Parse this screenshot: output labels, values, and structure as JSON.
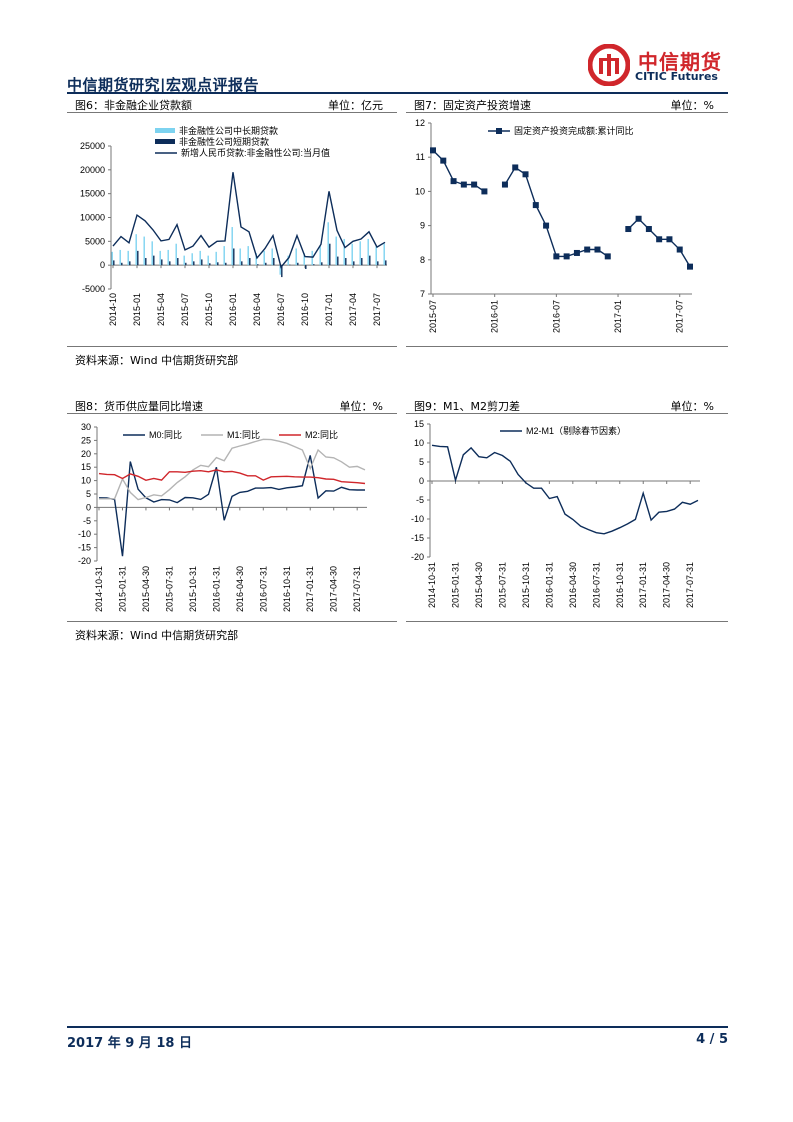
{
  "header": {
    "brand": "中信期货研究|宏观点评报告",
    "logo_cn": "中信期货",
    "logo_en": "CITIC Futures"
  },
  "fig6": {
    "title": "图6：非金融企业贷款额",
    "unit": "单位：亿元",
    "chart_data": {
      "type": "bar+line",
      "categories": [
        "2014-10",
        "2014-11",
        "2014-12",
        "2015-01",
        "2015-02",
        "2015-03",
        "2015-04",
        "2015-05",
        "2015-06",
        "2015-07",
        "2015-08",
        "2015-09",
        "2015-10",
        "2015-11",
        "2015-12",
        "2016-01",
        "2016-02",
        "2016-03",
        "2016-04",
        "2016-05",
        "2016-06",
        "2016-07",
        "2016-08",
        "2016-09",
        "2016-10",
        "2016-11",
        "2016-12",
        "2017-01",
        "2017-02",
        "2017-03",
        "2017-04",
        "2017-05",
        "2017-06",
        "2017-07",
        "2017-08"
      ],
      "tick_labels": [
        "2014-10",
        "2015-01",
        "2015-04",
        "2015-07",
        "2015-10",
        "2016-01",
        "2016-04",
        "2016-07",
        "2016-10",
        "2017-01",
        "2017-04",
        "2017-07"
      ],
      "ylim": [
        -5000,
        25000
      ],
      "yticks": [
        "25000",
        "20000",
        "15000",
        "10000",
        "5000",
        "0",
        "-5000"
      ],
      "series": [
        {
          "name": "非金融性公司中长期贷款",
          "color": "#7dd3f0",
          "values": [
            2800,
            3200,
            3000,
            6500,
            6000,
            5000,
            3000,
            3200,
            4500,
            2000,
            2500,
            3000,
            2000,
            2800,
            4000,
            8000,
            3500,
            4000,
            2500,
            3000,
            3500,
            -2000,
            2000,
            3500,
            2500,
            3000,
            4000,
            9000,
            6000,
            5500,
            4500,
            5000,
            5500,
            4000,
            4500
          ]
        },
        {
          "name": "非金融性公司短期贷款",
          "color": "#0d2d5a",
          "values": [
            1000,
            500,
            800,
            3000,
            1500,
            2000,
            1200,
            800,
            1500,
            500,
            800,
            1200,
            400,
            600,
            500,
            3500,
            800,
            1500,
            200,
            500,
            1500,
            -2500,
            100,
            500,
            -800,
            200,
            600,
            4500,
            1800,
            1500,
            800,
            1500,
            2000,
            800,
            1000
          ]
        },
        {
          "name": "新增人民币贷款:非金融性公司:当月值",
          "color": "#0d2d5a",
          "values": [
            4000,
            6000,
            4700,
            10500,
            9300,
            7400,
            5100,
            5400,
            8500,
            3200,
            4000,
            6200,
            3800,
            5000,
            5100,
            19500,
            8000,
            7000,
            1500,
            3500,
            6200,
            -400,
            1600,
            6200,
            1800,
            1700,
            4400,
            15500,
            7300,
            3700,
            5000,
            5500,
            7000,
            3800,
            4800
          ]
        }
      ]
    }
  },
  "fig7": {
    "title": "图7：固定资产投资增速",
    "unit": "单位：%",
    "chart_data": {
      "type": "line",
      "categories": [
        "2015-07",
        "2015-08",
        "2015-09",
        "2015-10",
        "2015-11",
        "2015-12",
        "2016-01",
        "2016-02",
        "2016-03",
        "2016-04",
        "2016-05",
        "2016-06",
        "2016-07",
        "2016-08",
        "2016-09",
        "2016-10",
        "2016-11",
        "2016-12",
        "2017-01",
        "2017-02",
        "2017-03",
        "2017-04",
        "2017-05",
        "2017-06",
        "2017-07",
        "2017-08"
      ],
      "tick_labels": [
        "2015-07",
        "2016-01",
        "2016-07",
        "2017-01",
        "2017-07"
      ],
      "ylim": [
        7,
        12
      ],
      "yticks": [
        "12",
        "11",
        "10",
        "9",
        "8",
        "7"
      ],
      "series": [
        {
          "name": "固定资产投资完成额:累计同比",
          "color": "#0d2d5a",
          "values": [
            11.2,
            10.9,
            10.3,
            10.2,
            10.2,
            10.0,
            null,
            10.2,
            10.7,
            10.5,
            9.6,
            9.0,
            8.1,
            8.1,
            8.2,
            8.3,
            8.3,
            8.1,
            null,
            8.9,
            9.2,
            8.9,
            8.6,
            8.6,
            8.3,
            7.8
          ]
        }
      ]
    }
  },
  "source1": "资料来源：Wind  中信期货研究部",
  "fig8": {
    "title": "图8：货币供应量同比增速",
    "unit": "单位：%",
    "chart_data": {
      "type": "line",
      "categories": [
        "2014-10",
        "2014-11",
        "2014-12",
        "2015-01",
        "2015-02",
        "2015-03",
        "2015-04",
        "2015-05",
        "2015-06",
        "2015-07",
        "2015-08",
        "2015-09",
        "2015-10",
        "2015-11",
        "2015-12",
        "2016-01",
        "2016-02",
        "2016-03",
        "2016-04",
        "2016-05",
        "2016-06",
        "2016-07",
        "2016-08",
        "2016-09",
        "2016-10",
        "2016-11",
        "2016-12",
        "2017-01",
        "2017-02",
        "2017-03",
        "2017-04",
        "2017-05",
        "2017-06",
        "2017-07",
        "2017-08"
      ],
      "tick_labels": [
        "2014-10-31",
        "2015-01-31",
        "2015-04-30",
        "2015-07-31",
        "2015-10-31",
        "2016-01-31",
        "2016-04-30",
        "2016-07-31",
        "2016-10-31",
        "2017-01-31",
        "2017-04-30",
        "2017-07-31"
      ],
      "ylim": [
        -20,
        30
      ],
      "yticks": [
        "30",
        "25",
        "20",
        "15",
        "10",
        "5",
        "0",
        "-5",
        "-10",
        "-15",
        "-20"
      ],
      "series": [
        {
          "name": "M0:同比",
          "color": "#0d2d5a",
          "values": [
            3.6,
            3.5,
            2.9,
            -18.2,
            17.1,
            6.8,
            3.6,
            2.0,
            2.9,
            2.8,
            1.8,
            3.7,
            3.6,
            3.0,
            4.9,
            15.0,
            -4.8,
            4.1,
            5.6,
            6.0,
            7.2,
            7.2,
            7.4,
            6.7,
            7.3,
            7.6,
            8.1,
            19.4,
            3.5,
            6.2,
            6.1,
            7.5,
            6.6,
            6.5,
            6.5
          ]
        },
        {
          "name": "M1:同比",
          "color": "#b4b4b4",
          "values": [
            3.2,
            3.2,
            3.2,
            10.6,
            5.6,
            2.9,
            3.7,
            4.7,
            4.3,
            6.6,
            9.3,
            11.4,
            14.0,
            15.7,
            15.2,
            18.6,
            17.4,
            22.1,
            22.9,
            23.7,
            24.6,
            25.4,
            25.3,
            24.7,
            23.9,
            22.7,
            21.4,
            14.5,
            21.4,
            18.8,
            18.5,
            17.0,
            15.0,
            15.3,
            14.0
          ]
        },
        {
          "name": "M2:同比",
          "color": "#d0262b",
          "values": [
            12.6,
            12.3,
            12.2,
            10.8,
            12.5,
            11.6,
            10.1,
            10.8,
            10.2,
            13.3,
            13.3,
            13.1,
            13.5,
            13.7,
            13.3,
            14.0,
            13.3,
            13.4,
            12.8,
            11.8,
            11.8,
            10.2,
            11.4,
            11.5,
            11.6,
            11.4,
            11.3,
            11.3,
            11.1,
            10.6,
            10.5,
            9.6,
            9.4,
            9.2,
            8.9
          ]
        }
      ]
    }
  },
  "fig9": {
    "title": "图9：M1、M2剪刀差",
    "unit": "单位：%",
    "chart_data": {
      "type": "line",
      "categories": [
        "2014-10",
        "2014-11",
        "2014-12",
        "2015-01",
        "2015-02",
        "2015-03",
        "2015-04",
        "2015-05",
        "2015-06",
        "2015-07",
        "2015-08",
        "2015-09",
        "2015-10",
        "2015-11",
        "2015-12",
        "2016-01",
        "2016-02",
        "2016-03",
        "2016-04",
        "2016-05",
        "2016-06",
        "2016-07",
        "2016-08",
        "2016-09",
        "2016-10",
        "2016-11",
        "2016-12",
        "2017-01",
        "2017-02",
        "2017-03",
        "2017-04",
        "2017-05",
        "2017-06",
        "2017-07",
        "2017-08"
      ],
      "tick_labels": [
        "2014-10-31",
        "2015-01-31",
        "2015-04-30",
        "2015-07-31",
        "2015-10-31",
        "2016-01-31",
        "2016-04-30",
        "2016-07-31",
        "2016-10-31",
        "2017-01-31",
        "2017-04-30",
        "2017-07-31"
      ],
      "ylim": [
        -20,
        15
      ],
      "yticks": [
        "15",
        "10",
        "5",
        "0",
        "-5",
        "-10",
        "-15",
        "-20"
      ],
      "series": [
        {
          "name": "M2-M1（剔除春节因素）",
          "color": "#0d2d5a",
          "values": [
            9.4,
            9.1,
            9.0,
            0.2,
            6.9,
            8.7,
            6.4,
            6.1,
            7.5,
            6.7,
            5.2,
            1.7,
            -0.5,
            -1.9,
            -1.9,
            -4.6,
            -4.1,
            -8.7,
            -10.1,
            -11.9,
            -12.8,
            -13.6,
            -13.9,
            -13.2,
            -12.3,
            -11.3,
            -10.1,
            -3.2,
            -10.3,
            -8.2,
            -8.0,
            -7.4,
            -5.6,
            -6.1,
            -5.1
          ]
        }
      ]
    }
  },
  "source2": "资料来源：Wind  中信期货研究部",
  "footer": {
    "date": "2017 年 9 月 18 日",
    "page": "4 / 5"
  }
}
